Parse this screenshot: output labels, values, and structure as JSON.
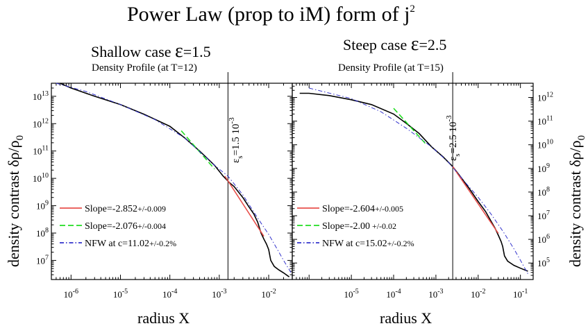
{
  "figure": {
    "title": "Power Law (prop to iM) form of j",
    "title_sup": "2",
    "xlabel": "radius X",
    "ylabel_left": "density contrast  δρ/ρ",
    "ylabel_left_sub": "0",
    "ylabel_right": "density contrast  δρ/ρ",
    "ylabel_right_sub": "0"
  },
  "panels": [
    {
      "case_label": "Shallow case ",
      "eps_symbol": "ε",
      "eps_value": "=1.5",
      "subtitle": "Density Profile (at T=12)",
      "annotation": "ε",
      "annotation_sub": "s",
      "annotation_text": "=1.5 10",
      "annotation_exp": "-3"
    },
    {
      "case_label": "Steep case ",
      "eps_symbol": "ε",
      "eps_value": "=2.5",
      "subtitle": "Density Profile (at T=15)",
      "annotation": "ε",
      "annotation_sub": "s",
      "annotation_text": "=2.5 10",
      "annotation_exp": "-3"
    }
  ],
  "chart_data": [
    {
      "type": "line",
      "title": "Shallow case ε=1.5 — Density Profile (at T=12)",
      "xlabel": "radius X",
      "ylabel": "density contrast δρ/ρ0",
      "xscale": "log",
      "yscale": "log",
      "xlim": [
        4e-07,
        0.03
      ],
      "ylim": [
        2000000,
        30000000000000
      ],
      "x_ticks": [
        1e-06,
        1e-05,
        0.0001,
        0.001,
        0.01
      ],
      "x_tick_labels": [
        {
          "base": "10",
          "exp": "-6"
        },
        {
          "base": "10",
          "exp": "-5"
        },
        {
          "base": "10",
          "exp": "-4"
        },
        {
          "base": "10",
          "exp": "-3"
        },
        {
          "base": "10",
          "exp": "-2"
        }
      ],
      "y_ticks": [
        10000000,
        100000000,
        1000000000,
        10000000000,
        100000000000,
        1000000000000,
        10000000000000
      ],
      "y_tick_labels": [
        {
          "base": "10",
          "exp": "7"
        },
        {
          "base": "10",
          "exp": "8"
        },
        {
          "base": "10",
          "exp": "9"
        },
        {
          "base": "10",
          "exp": "10"
        },
        {
          "base": "10",
          "exp": "11"
        },
        {
          "base": "10",
          "exp": "12"
        },
        {
          "base": "10",
          "exp": "13"
        }
      ],
      "y_axis_side": "left",
      "vline_x": 0.0015,
      "legend_position": "lower-left",
      "series": [
        {
          "name": "Data",
          "role": "data",
          "color": "#000000",
          "x": [
            6e-07,
            1e-06,
            3e-06,
            1e-05,
            3e-05,
            0.0001,
            0.0002,
            0.0004,
            0.0008,
            0.0012,
            0.0016,
            0.002,
            0.003,
            0.004,
            0.005,
            0.006,
            0.007,
            0.008,
            0.009,
            0.01,
            0.011,
            0.013,
            0.016,
            0.02,
            0.026
          ],
          "y": [
            30000000000000,
            20000000000000,
            10000000000000,
            5000000000000,
            2200000000000,
            800000000000,
            300000000000,
            100000000000,
            30000000000,
            12000000000,
            7000000000,
            5000000000,
            2000000000,
            900000000,
            500000000,
            250000000,
            100000000,
            60000000,
            40000000,
            25000000,
            10000000,
            6000000,
            4500000,
            3500000,
            2500000
          ]
        },
        {
          "name": "Slope=-2.852",
          "legend_suffix": "+/-0.009",
          "role": "fit",
          "dash": "solid",
          "color": "#e8504c",
          "x": [
            0.0013,
            0.008
          ],
          "y": [
            12000000000,
            76000000
          ]
        },
        {
          "name": "Slope=-2.076",
          "legend_suffix": "+/-0.004",
          "role": "fit",
          "dash": "dashed",
          "color": "#22dd22",
          "x": [
            0.00017,
            0.0008
          ],
          "y": [
            550000000000,
            22000000000
          ]
        },
        {
          "name": "NFW at c=11.02",
          "legend_suffix": "+/-0.2%",
          "role": "model",
          "dash": "dashdot",
          "color": "#3333cc",
          "x": [
            5e-07,
            2e-06,
            1e-05,
            5e-05,
            0.0002,
            0.0008,
            0.0015,
            0.003,
            0.006,
            0.01,
            0.015,
            0.02,
            0.03
          ],
          "y": [
            30000000000000,
            15000000000000,
            5000000000000,
            1400000000000,
            300000000000,
            30000000000,
            12000000000,
            2500000000,
            350000000,
            90000000,
            25000000,
            10000000,
            3000000
          ]
        }
      ]
    },
    {
      "type": "line",
      "title": "Steep case ε=2.5 — Density Profile (at T=15)",
      "xlabel": "radius X",
      "ylabel": "density contrast δρ/ρ0",
      "xscale": "log",
      "yscale": "log",
      "xlim": [
        4e-07,
        0.2
      ],
      "ylim": [
        20000,
        4000000000000
      ],
      "x_ticks": [
        1e-05,
        0.0001,
        0.001,
        0.01,
        0.1
      ],
      "x_tick_labels": [
        {
          "base": "10",
          "exp": "-5"
        },
        {
          "base": "10",
          "exp": "-4"
        },
        {
          "base": "10",
          "exp": "-3"
        },
        {
          "base": "10",
          "exp": "-2"
        },
        {
          "base": "10",
          "exp": "-1"
        }
      ],
      "y_ticks": [
        100000,
        1000000,
        10000000,
        100000000,
        1000000000,
        10000000000,
        100000000000,
        1000000000000
      ],
      "y_tick_labels": [
        {
          "base": "10",
          "exp": "5"
        },
        {
          "base": "10",
          "exp": "6"
        },
        {
          "base": "10",
          "exp": "7"
        },
        {
          "base": "10",
          "exp": "8"
        },
        {
          "base": "10",
          "exp": "9"
        },
        {
          "base": "10",
          "exp": "10"
        },
        {
          "base": "10",
          "exp": "11"
        },
        {
          "base": "10",
          "exp": "12"
        }
      ],
      "y_axis_side": "right",
      "vline_x": 0.0025,
      "legend_position": "lower-left",
      "series": [
        {
          "name": "Data",
          "role": "data",
          "color": "#000000",
          "x": [
            6e-07,
            1e-06,
            3e-06,
            1e-05,
            3e-05,
            0.0001,
            0.0002,
            0.0004,
            0.0008,
            0.0015,
            0.0025,
            0.004,
            0.006,
            0.01,
            0.015,
            0.02,
            0.025,
            0.03,
            0.035,
            0.038,
            0.042,
            0.05,
            0.07,
            0.1,
            0.15
          ],
          "y": [
            1500000000000,
            1500000000000,
            1200000000000,
            800000000000,
            500000000000,
            200000000000,
            80000000000,
            30000000000,
            8000000000,
            3000000000,
            1200000000,
            400000000,
            150000000,
            40000000,
            15000000,
            6000000,
            3000000,
            1500000,
            800000,
            500000,
            200000,
            120000,
            80000,
            60000,
            45000
          ]
        },
        {
          "name": "Slope=-2.604",
          "legend_suffix": "+/-0.005",
          "role": "fit",
          "dash": "solid",
          "color": "#e8504c",
          "x": [
            0.0025,
            0.03
          ],
          "y": [
            1200000000,
            1800000
          ]
        },
        {
          "name": "Slope=-2.00",
          "legend_suffix": "+/-0.02",
          "role": "fit",
          "dash": "dashed",
          "color": "#22dd22",
          "x": [
            0.0001,
            0.0006
          ],
          "y": [
            350000000000,
            10000000000
          ]
        },
        {
          "name": "NFW at c=15.02",
          "legend_suffix": "+/-0.2%",
          "role": "model",
          "dash": "dashdot",
          "color": "#3333cc",
          "x": [
            1e-06,
            1e-05,
            5e-05,
            0.0002,
            0.0008,
            0.002,
            0.005,
            0.01,
            0.02,
            0.04,
            0.07,
            0.1,
            0.15
          ],
          "y": [
            2500000000000,
            900000000000,
            250000000000,
            50000000000,
            8000000000,
            1800000000,
            250000000,
            60000000,
            12000000,
            2000000,
            400000,
            130000,
            35000
          ]
        }
      ]
    }
  ]
}
